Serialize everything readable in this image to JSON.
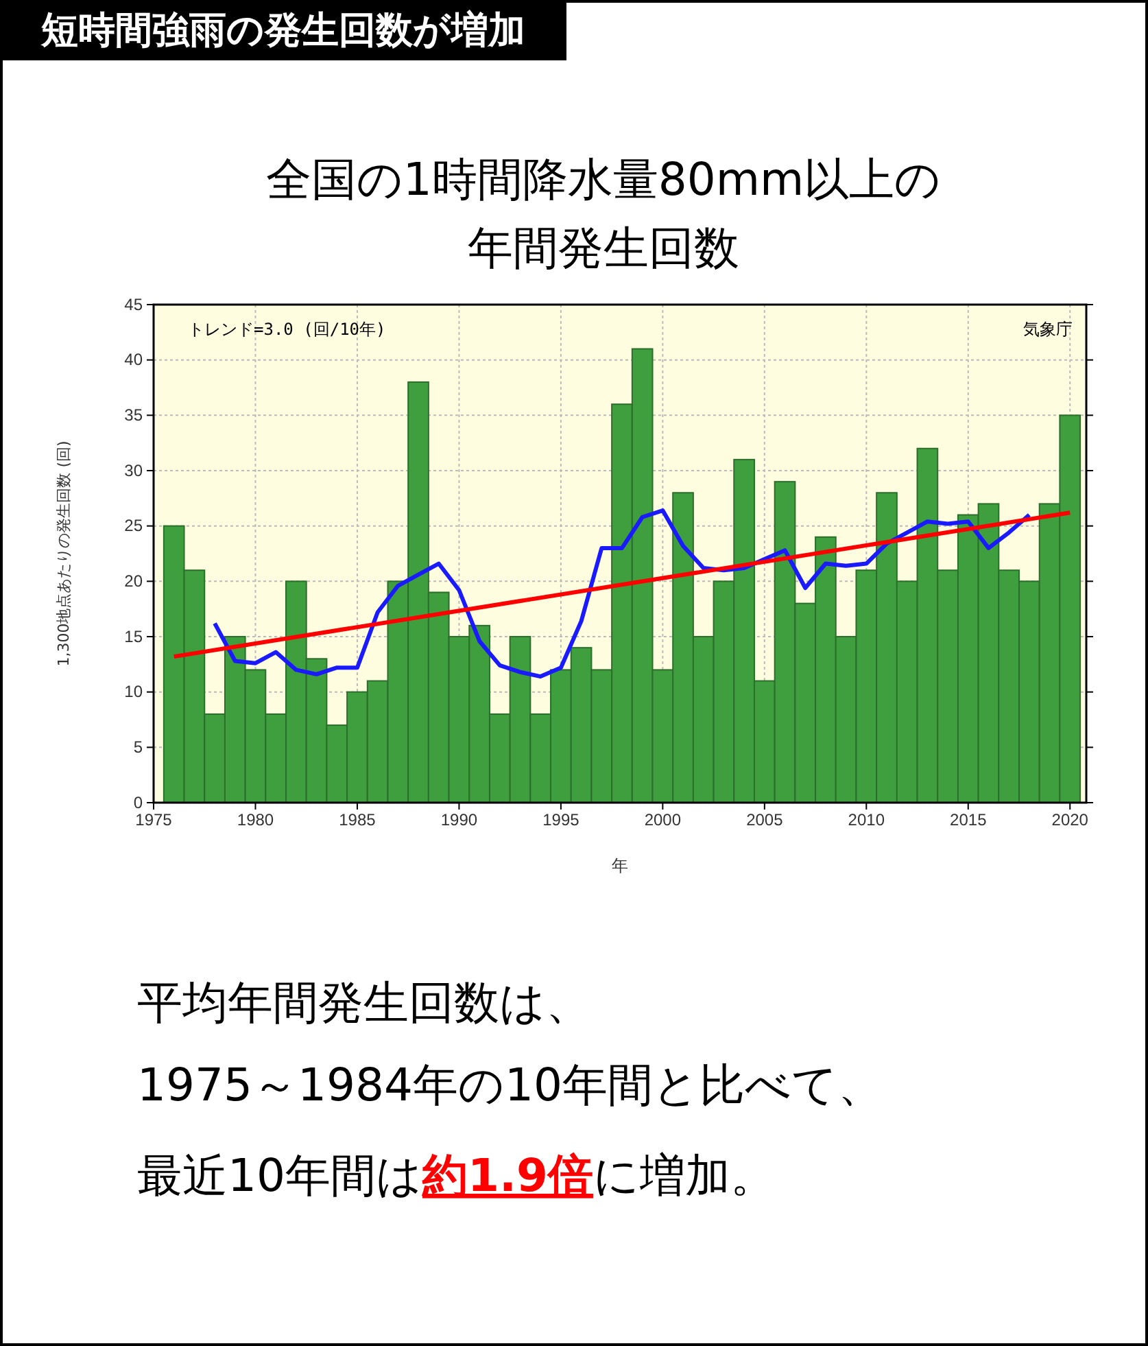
{
  "chart_data": {
    "type": "bar",
    "title": "短時間強雨の発生回数が増加",
    "subtitle": "全国の1時間降水量80mm以上の年間発生回数",
    "xlabel": "年",
    "ylabel": "1,300地点あたりの発生回数 (回)",
    "x": [
      1976,
      1977,
      1978,
      1979,
      1980,
      1981,
      1982,
      1983,
      1984,
      1985,
      1986,
      1987,
      1988,
      1989,
      1990,
      1991,
      1992,
      1993,
      1994,
      1995,
      1996,
      1997,
      1998,
      1999,
      2000,
      2001,
      2002,
      2003,
      2004,
      2005,
      2006,
      2007,
      2008,
      2009,
      2010,
      2011,
      2012,
      2013,
      2014,
      2015,
      2016,
      2017,
      2018,
      2019,
      2020
    ],
    "series": [
      {
        "color": "#3f9f3f",
        "values": [
          25,
          21,
          8,
          15,
          12,
          8,
          20,
          13,
          7,
          10,
          11,
          20,
          38,
          19,
          15,
          16,
          8,
          15,
          8,
          12,
          14,
          12,
          36,
          41,
          12,
          28,
          15,
          20,
          31,
          11,
          29,
          18,
          24,
          15,
          21,
          28,
          20,
          32,
          21,
          26,
          27,
          21,
          20,
          27,
          35
        ]
      },
      {
        "type": "line",
        "color": "#1a1aff",
        "x": [
          1978,
          1979,
          1980,
          1981,
          1982,
          1983,
          1984,
          1985,
          1986,
          1987,
          1988,
          1989,
          1990,
          1991,
          1992,
          1993,
          1994,
          1995,
          1996,
          1997,
          1998,
          1999,
          2000,
          2001,
          2002,
          2003,
          2004,
          2005,
          2006,
          2007,
          2008,
          2009,
          2010,
          2011,
          2012,
          2013,
          2014,
          2015,
          2016,
          2017,
          2018
        ],
        "values": [
          16.2,
          12.8,
          12.6,
          13.6,
          12,
          11.6,
          12.2,
          12.2,
          17.2,
          19.6,
          20.6,
          21.6,
          19.2,
          14.6,
          12.4,
          11.8,
          11.4,
          12.2,
          16.4,
          23,
          23,
          25.8,
          26.4,
          23.2,
          21.2,
          21,
          21.2,
          22,
          22.8,
          19.4,
          21.6,
          21.4,
          21.6,
          23.4,
          24.4,
          25.4,
          25.2,
          25.4,
          23,
          24.4,
          26
        ]
      },
      {
        "type": "line",
        "color": "#ff0000",
        "x": [
          1976,
          2020
        ],
        "values": [
          13.2,
          26.2
        ]
      }
    ],
    "xlim": [
      1975,
      2020.8
    ],
    "xticks": [
      1975,
      1980,
      1985,
      1990,
      1995,
      2000,
      2005,
      2010,
      2015,
      2020
    ],
    "ylim": [
      0,
      45
    ],
    "yticks": [
      0,
      5,
      10,
      15,
      20,
      25,
      30,
      35,
      40,
      45
    ],
    "grid": true,
    "marker": "none",
    "line_style": "solid",
    "annotations": [
      "トレンド=3.0 (回/10年)",
      "気象庁",
      "平均年間発生回数は、",
      "1975～1984年の10年間と比べて、",
      "最近10年間は",
      "約1.9倍",
      "に増加。"
    ]
  }
}
